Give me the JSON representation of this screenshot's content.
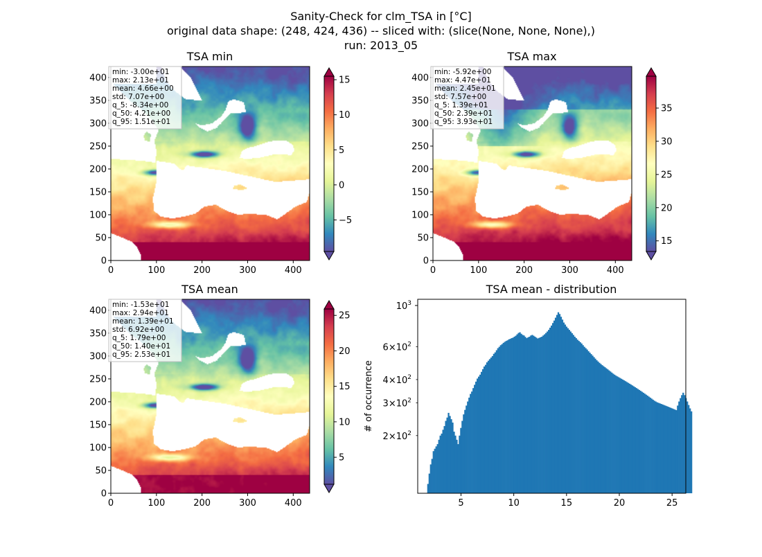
{
  "figure": {
    "suptitle_lines": [
      "Sanity-Check for clm_TSA in [°C]",
      "original data shape: (248, 424, 436) -- sliced with: (slice(None, None, None),)",
      "run: 2013_05"
    ]
  },
  "colors": {
    "hist_bar": "#1f77b4",
    "colormap": "Spectral_r",
    "colormap_stops": [
      "#5e4fa2",
      "#3288bd",
      "#66c2a5",
      "#abdda4",
      "#e6f598",
      "#ffffbf",
      "#fee08b",
      "#fdae61",
      "#f46d43",
      "#d53e4f",
      "#9e0142"
    ]
  },
  "chart_data": [
    {
      "type": "heatmap",
      "title": "TSA min",
      "xlim": [
        0,
        436
      ],
      "ylim": [
        0,
        424
      ],
      "xticks": [
        "0",
        "100",
        "200",
        "300",
        "400"
      ],
      "yticks": [
        "0",
        "50",
        "100",
        "150",
        "200",
        "250",
        "300",
        "350",
        "400"
      ],
      "colorbar": {
        "range": [
          -9.5,
          15.5
        ],
        "ticks": [
          "−5",
          "0",
          "5",
          "10",
          "15"
        ],
        "tick_values": [
          -5,
          0,
          5,
          10,
          15
        ],
        "extend": "both"
      },
      "stats": [
        "min: -3.00e+01",
        "max: 2.13e+01",
        "mean: 4.66e+00",
        "std: 7.07e+00",
        "q_5: -8.34e+00",
        "q_50: 4.21e+00",
        "q_95: 1.51e+01"
      ]
    },
    {
      "type": "heatmap",
      "title": "TSA max",
      "xlim": [
        0,
        436
      ],
      "ylim": [
        0,
        424
      ],
      "xticks": [
        "0",
        "100",
        "200",
        "300",
        "400"
      ],
      "yticks": [
        "0",
        "50",
        "100",
        "150",
        "200",
        "250",
        "300",
        "350",
        "400"
      ],
      "colorbar": {
        "range": [
          13.4,
          39.8
        ],
        "ticks": [
          "15",
          "20",
          "25",
          "30",
          "35"
        ],
        "tick_values": [
          15,
          20,
          25,
          30,
          35
        ],
        "extend": "both"
      },
      "stats": [
        "min: -5.92e+00",
        "max: 4.47e+01",
        "mean: 2.45e+01",
        "std: 7.57e+00",
        "q_5: 1.39e+01",
        "q_50: 2.39e+01",
        "q_95: 3.93e+01"
      ]
    },
    {
      "type": "heatmap",
      "title": "TSA mean",
      "xlim": [
        0,
        436
      ],
      "ylim": [
        0,
        424
      ],
      "xticks": [
        "0",
        "100",
        "200",
        "300",
        "400"
      ],
      "yticks": [
        "0",
        "50",
        "100",
        "150",
        "200",
        "250",
        "300",
        "350",
        "400"
      ],
      "colorbar": {
        "range": [
          1.2,
          25.9
        ],
        "ticks": [
          "5",
          "10",
          "15",
          "20",
          "25"
        ],
        "tick_values": [
          5,
          10,
          15,
          20,
          25
        ],
        "extend": "both"
      },
      "stats": [
        "min: -1.53e+01",
        "max: 2.94e+01",
        "mean: 1.39e+01",
        "std: 6.92e+00",
        "q_5: 1.79e+00",
        "q_50: 1.40e+01",
        "q_95: 2.53e+01"
      ]
    },
    {
      "type": "bar",
      "title": "TSA mean - distribution",
      "ylabel": "# of occurrence",
      "yscale": "log",
      "xlim": [
        0.9,
        26.3
      ],
      "ylim": [
        98,
        1080
      ],
      "xticks": [
        5,
        10,
        15,
        20,
        25
      ],
      "xtick_labels": [
        "5",
        "10",
        "15",
        "20",
        "25"
      ],
      "yticks_major": [
        {
          "value": 1000,
          "base": "10",
          "exp": "3"
        }
      ],
      "yticks_minor": [
        {
          "value": 200,
          "mant": "2",
          "base": "10",
          "exp": "2"
        },
        {
          "value": 300,
          "mant": "3",
          "base": "10",
          "exp": "2"
        },
        {
          "value": 400,
          "mant": "4",
          "base": "10",
          "exp": "2"
        },
        {
          "value": 600,
          "mant": "6",
          "base": "10",
          "exp": "2"
        }
      ],
      "bins": {
        "start": 1.8,
        "width": 0.13
      },
      "values": [
        110,
        125,
        140,
        150,
        165,
        170,
        175,
        180,
        190,
        200,
        205,
        215,
        225,
        240,
        250,
        265,
        255,
        245,
        235,
        210,
        200,
        190,
        180,
        200,
        220,
        240,
        260,
        275,
        290,
        305,
        320,
        335,
        345,
        360,
        375,
        390,
        405,
        415,
        425,
        440,
        455,
        470,
        480,
        495,
        505,
        515,
        525,
        535,
        550,
        560,
        575,
        590,
        600,
        612,
        620,
        630,
        638,
        645,
        650,
        658,
        662,
        668,
        672,
        680,
        688,
        700,
        712,
        718,
        705,
        695,
        690,
        678,
        668,
        675,
        680,
        690,
        695,
        688,
        680,
        672,
        665,
        670,
        675,
        680,
        690,
        700,
        712,
        725,
        740,
        760,
        780,
        805,
        830,
        860,
        890,
        920,
        900,
        870,
        840,
        810,
        790,
        770,
        755,
        740,
        725,
        710,
        695,
        680,
        668,
        655,
        645,
        635,
        625,
        612,
        600,
        590,
        580,
        568,
        558,
        548,
        538,
        528,
        518,
        508,
        500,
        492,
        485,
        478,
        472,
        466,
        460,
        454,
        448,
        442,
        436,
        430,
        425,
        420,
        416,
        412,
        408,
        404,
        400,
        396,
        392,
        388,
        384,
        380,
        376,
        372,
        368,
        364,
        360,
        356,
        352,
        348,
        344,
        340,
        336,
        332,
        328,
        324,
        320,
        316,
        312,
        308,
        305,
        302,
        300,
        298,
        296,
        294,
        292,
        290,
        288,
        286,
        284,
        282,
        280,
        278,
        276,
        274,
        290,
        305,
        318,
        330,
        340,
        330,
        318,
        305,
        292,
        280,
        270
      ]
    }
  ]
}
